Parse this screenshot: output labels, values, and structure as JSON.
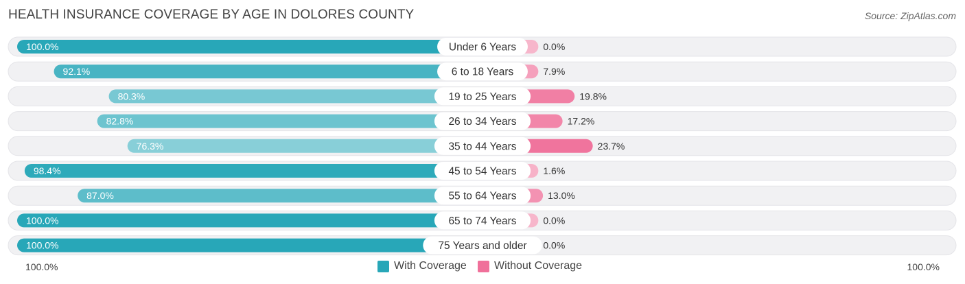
{
  "title": "HEALTH INSURANCE COVERAGE BY AGE IN DOLORES COUNTY",
  "source": "Source: ZipAtlas.com",
  "colors": {
    "with_dark": "#28a7b8",
    "with_light": "#8dd1da",
    "without_dark": "#f0709a",
    "without_light": "#f7b6cb",
    "track": "#f1f1f3"
  },
  "legend": {
    "with": "With Coverage",
    "without": "Without Coverage"
  },
  "axis": {
    "left": "100.0%",
    "right": "100.0%"
  },
  "chart_data": {
    "type": "bar",
    "orientation": "horizontal-diverging",
    "title": "HEALTH INSURANCE COVERAGE BY AGE IN DOLORES COUNTY",
    "xlim": [
      -100,
      100
    ],
    "categories": [
      "Under 6 Years",
      "6 to 18 Years",
      "19 to 25 Years",
      "26 to 34 Years",
      "35 to 44 Years",
      "45 to 54 Years",
      "55 to 64 Years",
      "65 to 74 Years",
      "75 Years and older"
    ],
    "series": [
      {
        "name": "With Coverage",
        "values": [
          100.0,
          92.1,
          80.3,
          82.8,
          76.3,
          98.4,
          87.0,
          100.0,
          100.0
        ],
        "labels": [
          "100.0%",
          "92.1%",
          "80.3%",
          "82.8%",
          "76.3%",
          "98.4%",
          "87.0%",
          "100.0%",
          "100.0%"
        ]
      },
      {
        "name": "Without Coverage",
        "values": [
          0.0,
          7.9,
          19.8,
          17.2,
          23.7,
          1.6,
          13.0,
          0.0,
          0.0
        ],
        "labels": [
          "0.0%",
          "7.9%",
          "19.8%",
          "17.2%",
          "23.7%",
          "1.6%",
          "13.0%",
          "0.0%",
          "0.0%"
        ]
      }
    ]
  }
}
